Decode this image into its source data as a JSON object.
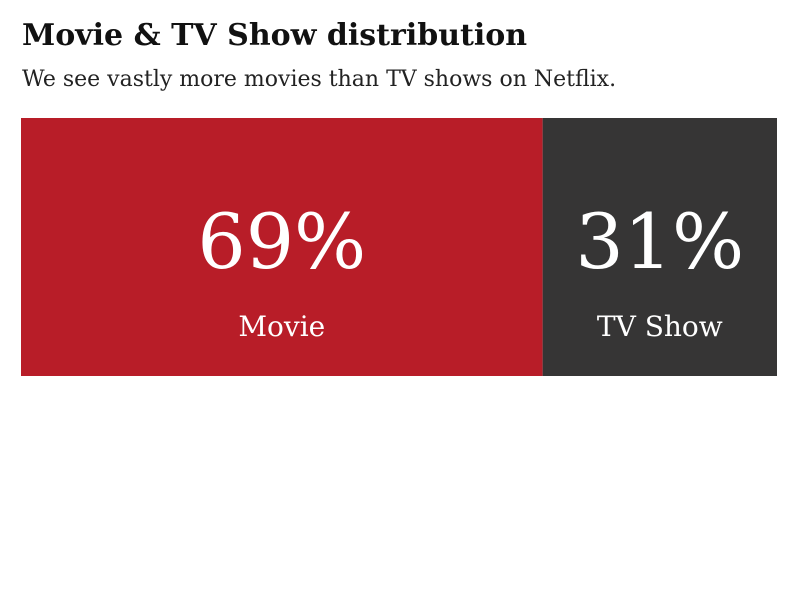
{
  "header": {
    "title": "Movie & TV Show distribution",
    "subtitle": "We see vastly more movies than TV shows on Netflix."
  },
  "chart_data": {
    "type": "bar",
    "stacked": true,
    "orientation": "horizontal",
    "title": "Movie & TV Show distribution",
    "subtitle": "We see vastly more movies than TV shows on Netflix.",
    "categories": [
      "Movie",
      "TV Show"
    ],
    "values": [
      0.69,
      0.31
    ],
    "value_labels": [
      "69%",
      "31%"
    ],
    "colors": [
      "#b81d28",
      "#363535"
    ],
    "xlim": [
      0,
      1
    ],
    "grid": false,
    "legend": "none"
  }
}
